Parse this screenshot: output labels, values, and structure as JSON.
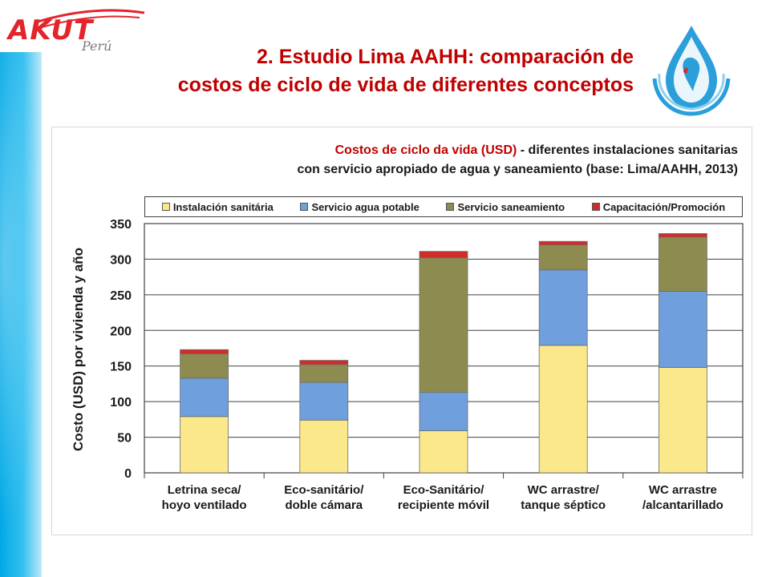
{
  "logo": {
    "main": "AKUT",
    "sub": "Perú"
  },
  "slide_title": {
    "line1": "2. Estudio Lima AAHH: comparación de",
    "line2": "costos de ciclo de vida de diferentes conceptos"
  },
  "chart_data": {
    "type": "bar",
    "stacked": true,
    "title_red": "Costos de ciclo da vida (USD)",
    "title_rest": " - diferentes instalaciones sanitarias",
    "title_line2": "con servicio apropiado de agua y saneamiento (base: Lima/AAHH, 2013)",
    "ylabel": "Costo (USD) por vivienda  y año",
    "xlabel": "",
    "ylim": [
      0,
      350
    ],
    "yticks": [
      0,
      50,
      100,
      150,
      200,
      250,
      300,
      350
    ],
    "grid": true,
    "legend_position": "top",
    "categories": [
      [
        "Letrina seca/",
        "hoyo ventilado"
      ],
      [
        "Eco-sanitário/",
        "doble cámara"
      ],
      [
        "Eco-Sanitário/",
        "recipiente móvil"
      ],
      [
        "WC arrastre/",
        "tanque séptico"
      ],
      [
        "WC arrastre",
        "/alcantarillado"
      ]
    ],
    "series": [
      {
        "name": "Instalación sanitária",
        "color": "#fbe88a",
        "values": [
          79,
          74,
          59,
          179,
          148
        ]
      },
      {
        "name": "Servicio agua potable",
        "color": "#6f9fdc",
        "values": [
          54,
          53,
          54,
          106,
          107
        ]
      },
      {
        "name": "Servicio saneamiento",
        "color": "#8e8b50",
        "values": [
          34,
          25,
          189,
          35,
          76
        ]
      },
      {
        "name": "Capacitación/Promoción",
        "color": "#d22b2b",
        "values": [
          6,
          6,
          9,
          5,
          5
        ]
      }
    ]
  }
}
